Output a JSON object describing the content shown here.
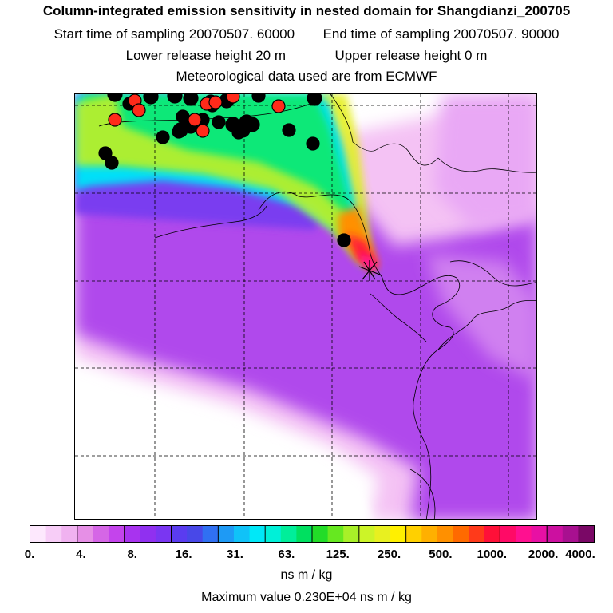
{
  "header": {
    "title": "Column-integrated emission sensitivity in nested domain for Shangdianzi_200705",
    "start_label": "Start time of sampling",
    "start_value": "20070507. 60000",
    "end_label": "End time of sampling",
    "end_value": "20070507. 90000",
    "lower_label": "Lower release height",
    "lower_value": "20 m",
    "upper_label": "Upper release height",
    "upper_value": "0 m",
    "met_text": "Meteorological data used are from ECMWF"
  },
  "colorbar": {
    "ticks": [
      "0.",
      "4.",
      "8.",
      "16.",
      "31.",
      "63.",
      "125.",
      "250.",
      "500.",
      "1000.",
      "2000.",
      "4000."
    ],
    "colors": [
      "#fde8fd",
      "#f7cdf7",
      "#f0b2f0",
      "#e68fe6",
      "#d566e6",
      "#c444ec",
      "#a833ef",
      "#9030f0",
      "#7a36f2",
      "#5a3cf0",
      "#4848e8",
      "#3070f2",
      "#1e9af5",
      "#10c2f8",
      "#00e8f8",
      "#00f0d8",
      "#00ee9a",
      "#00e060",
      "#22dc28",
      "#66e820",
      "#a8f028",
      "#ccf428",
      "#e8f020",
      "#fff000",
      "#ffd000",
      "#ffb000",
      "#ff9000",
      "#ff6a00",
      "#ff3a1a",
      "#ff1038",
      "#ff0a66",
      "#ff1090",
      "#e810a4",
      "#cc10a0",
      "#a81090",
      "#7a0866"
    ],
    "units": "ns m / kg"
  },
  "max_value_text": "Maximum value  0.230E+04 ns m / kg",
  "map": {
    "receptor_marker": "asterisk-icon",
    "marker_colors": {
      "black": "#000000",
      "red": "#ff2a1a"
    }
  }
}
